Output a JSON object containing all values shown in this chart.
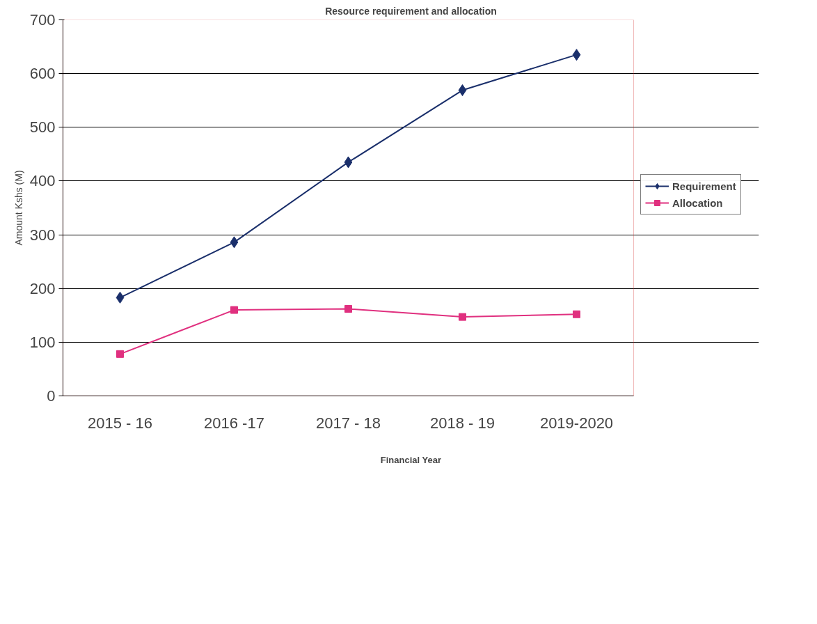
{
  "chart_data": {
    "type": "line",
    "title": "Resource requirement and allocation",
    "xlabel": "Financial Year",
    "ylabel": "Amount Kshs (M)",
    "categories": [
      "2015 - 16",
      "2016 -17",
      "2017 - 18",
      "2018 - 19",
      "2019-2020"
    ],
    "series": [
      {
        "name": "Requirement",
        "color": "#1a2f6b",
        "marker": "diamond",
        "values": [
          183,
          286,
          435,
          569,
          635
        ]
      },
      {
        "name": "Allocation",
        "color": "#e0307f",
        "marker": "square",
        "values": [
          78,
          160,
          162,
          147,
          152
        ]
      }
    ],
    "ylim": [
      0,
      700
    ],
    "yticks": [
      0,
      100,
      200,
      300,
      400,
      500,
      600,
      700
    ],
    "grid": "y",
    "legend": "right",
    "line_style": "solid"
  }
}
